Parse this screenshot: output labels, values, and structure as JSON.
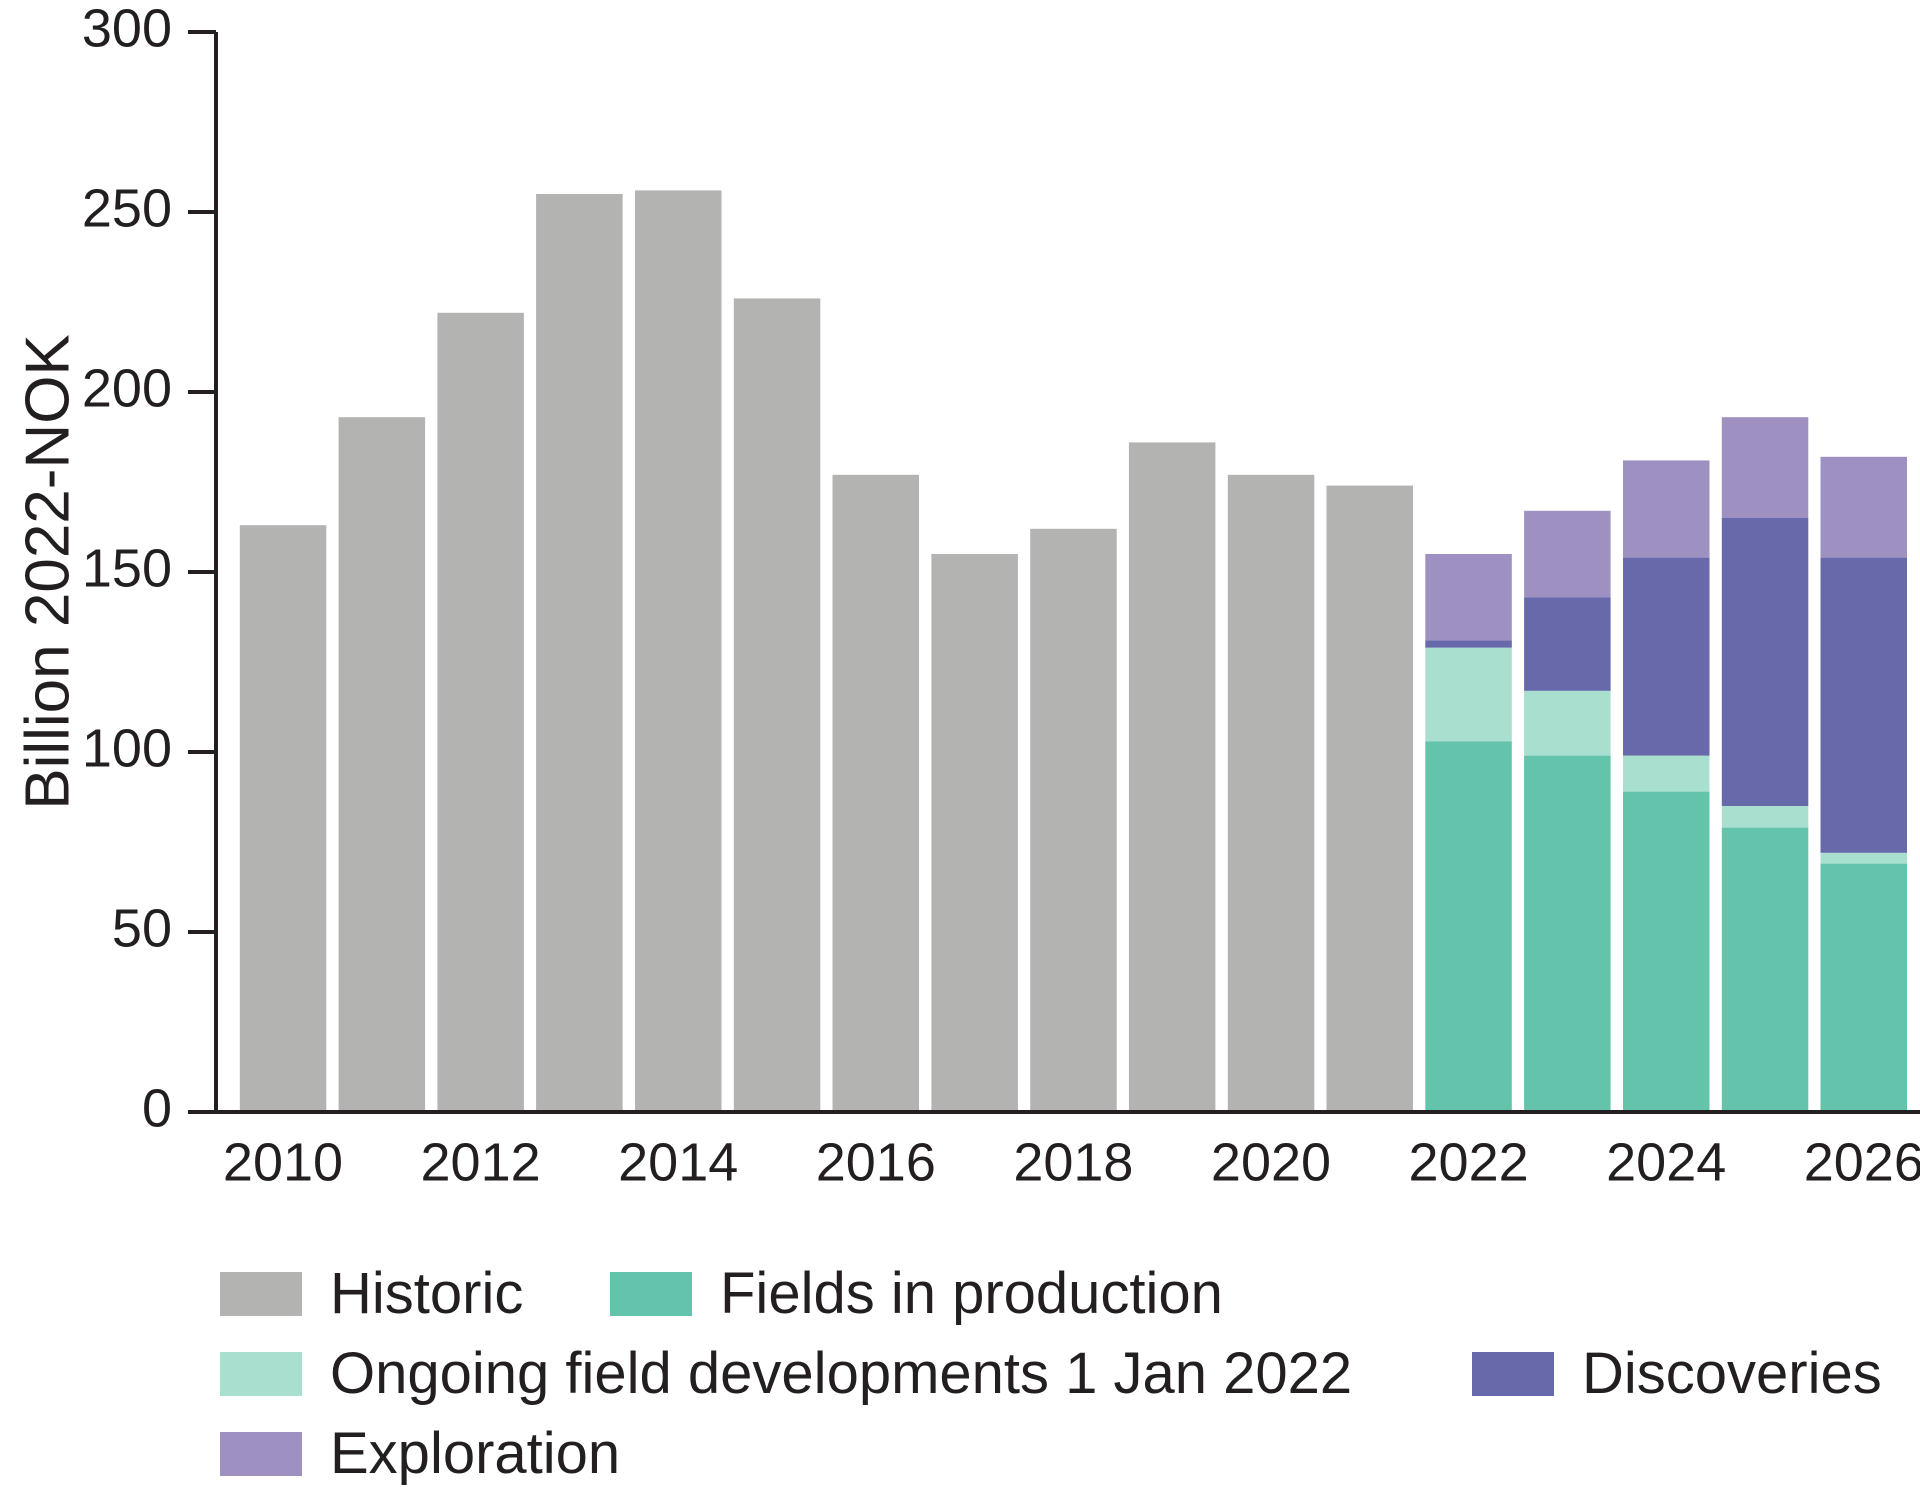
{
  "chart_data": {
    "type": "bar",
    "stacked": true,
    "title": "",
    "xlabel": "",
    "ylabel": "Billion 2022-NOK",
    "ylim": [
      0,
      300
    ],
    "yticks": [
      0,
      50,
      100,
      150,
      200,
      250,
      300
    ],
    "xticks": [
      "2010",
      "2012",
      "2014",
      "2016",
      "2018",
      "2020",
      "2022",
      "2024",
      "2026"
    ],
    "categories": [
      "2010",
      "2011",
      "2012",
      "2013",
      "2014",
      "2015",
      "2016",
      "2017",
      "2018",
      "2019",
      "2020",
      "2021",
      "2022",
      "2023",
      "2024",
      "2025",
      "2026"
    ],
    "grid": false,
    "legend_position": "bottom",
    "series": [
      {
        "name": "Historic",
        "color": "#b3b3b2",
        "values": [
          163,
          193,
          222,
          255,
          256,
          226,
          177,
          155,
          162,
          186,
          177,
          174,
          0,
          0,
          0,
          0,
          0
        ]
      },
      {
        "name": "Fields in production",
        "color": "#63c3ab",
        "values": [
          0,
          0,
          0,
          0,
          0,
          0,
          0,
          0,
          0,
          0,
          0,
          0,
          103,
          99,
          89,
          79,
          69
        ]
      },
      {
        "name": "Ongoing field developments 1 Jan 2022",
        "color": "#a9dfcf",
        "values": [
          0,
          0,
          0,
          0,
          0,
          0,
          0,
          0,
          0,
          0,
          0,
          0,
          26,
          18,
          10,
          6,
          3
        ]
      },
      {
        "name": "Discoveries",
        "color": "#6769ab",
        "values": [
          0,
          0,
          0,
          0,
          0,
          0,
          0,
          0,
          0,
          0,
          0,
          0,
          2,
          26,
          55,
          80,
          82
        ]
      },
      {
        "name": "Exploration",
        "color": "#9e91c2",
        "values": [
          0,
          0,
          0,
          0,
          0,
          0,
          0,
          0,
          0,
          0,
          0,
          0,
          24,
          24,
          27,
          28,
          28
        ]
      }
    ]
  },
  "legend": {
    "items": [
      {
        "label": "Historic",
        "color": "#b3b3b2"
      },
      {
        "label": "Fields in production",
        "color": "#63c3ab"
      },
      {
        "label": "Ongoing field developments 1 Jan 2022",
        "color": "#a9dfcf"
      },
      {
        "label": "Discoveries",
        "color": "#6769ab"
      },
      {
        "label": "Exploration",
        "color": "#9e91c2"
      }
    ]
  }
}
